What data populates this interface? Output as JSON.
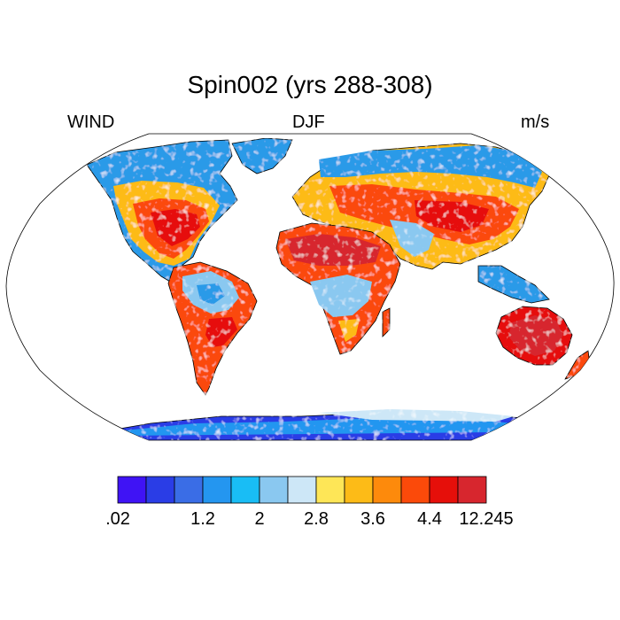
{
  "title": "Spin002 (yrs 288-308)",
  "labels": {
    "left": "WIND",
    "center": "DJF",
    "right": "m/s"
  },
  "colorbar": {
    "colors": [
      "#3f13f5",
      "#2a3de6",
      "#3a6de6",
      "#2496f0",
      "#19bdf5",
      "#8ac8f0",
      "#cde7f7",
      "#fee657",
      "#fdbb17",
      "#fd8a0c",
      "#fb4a0a",
      "#e60f0a",
      "#d7262e"
    ],
    "tick_labels": [
      ".02",
      "1.2",
      "2",
      "2.8",
      "3.6",
      "4.4",
      "12.245"
    ]
  },
  "chart_data": {
    "type": "heatmap",
    "title": "Spin002 (yrs 288-308)",
    "variable": "WIND",
    "season": "DJF",
    "units": "m/s",
    "projection": "Robinson",
    "color_levels": [
      ".02",
      "1.2",
      "2",
      "2.8",
      "3.6",
      "4.4",
      "12.245"
    ],
    "regions": [
      {
        "region": "Sahara / North Africa",
        "level": "4.4-12.245"
      },
      {
        "region": "Australia interior",
        "level": "4.4-12.245"
      },
      {
        "region": "Eastern United States",
        "level": "4.4-12.245"
      },
      {
        "region": "Amazon basin",
        "level": "1.2-2.8"
      },
      {
        "region": "Central Africa",
        "level": "2-2.8"
      },
      {
        "region": "Siberia / Arctic",
        "level": "1.2-2.8"
      },
      {
        "region": "Antarctica coast",
        "level": ".02-2"
      },
      {
        "region": "Greenland",
        "level": "1.2-2"
      }
    ]
  }
}
